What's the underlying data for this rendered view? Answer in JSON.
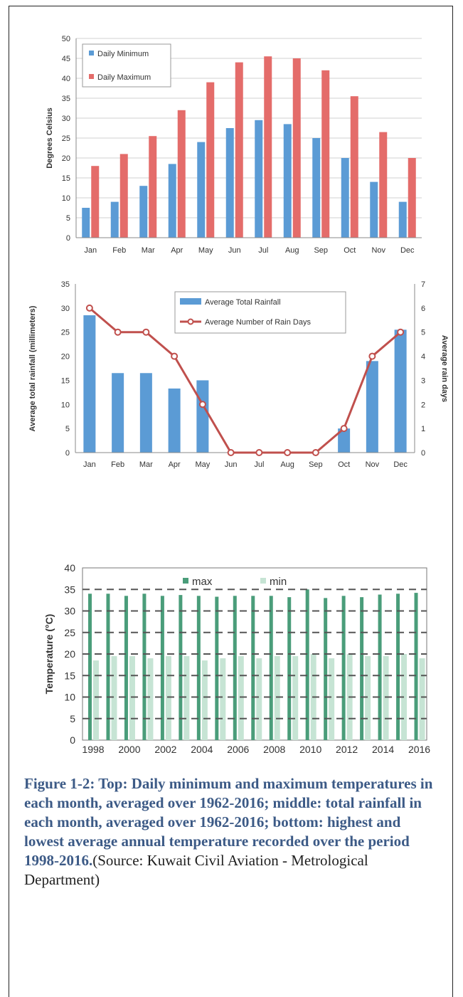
{
  "colors": {
    "daily_min": "#5b9bd5",
    "daily_max": "#e46c6a",
    "rainfall_bar": "#5b9bd5",
    "rain_days_line": "#c0504d",
    "annual_max": "#4a9d7a",
    "annual_min": "#c6e4d4",
    "caption_bold": "#3c5a86"
  },
  "charts": {
    "top": {
      "y_ticks": [
        "0",
        "5",
        "10",
        "15",
        "20",
        "25",
        "30",
        "35",
        "40",
        "45",
        "50"
      ],
      "x_ticks": [
        "Jan",
        "Feb",
        "Mar",
        "Apr",
        "May",
        "Jun",
        "Jul",
        "Aug",
        "Sep",
        "Oct",
        "Nov",
        "Dec"
      ]
    },
    "middle": {
      "y_ticks": [
        "0",
        "5",
        "10",
        "15",
        "20",
        "25",
        "30",
        "35"
      ],
      "y2_ticks": [
        "0",
        "1",
        "2",
        "3",
        "4",
        "5",
        "6",
        "7"
      ],
      "x_ticks": [
        "Jan",
        "Feb",
        "Mar",
        "Apr",
        "May",
        "Jun",
        "Jul",
        "Aug",
        "Sep",
        "Oct",
        "Nov",
        "Dec"
      ]
    },
    "bottom": {
      "y_ticks": [
        "0",
        "5",
        "10",
        "15",
        "20",
        "25",
        "30",
        "35",
        "40"
      ],
      "x_ticks": [
        "1998",
        "2000",
        "2002",
        "2004",
        "2006",
        "2008",
        "2010",
        "2012",
        "2014",
        "2016"
      ]
    }
  },
  "caption": {
    "bold": "Figure 1-2: Top: Daily minimum and maximum temperatures in each month, averaged over 1962-2016; middle: total rainfall in each month, averaged over 1962-2016; bottom: highest and lowest average annual temperature recorded over the period 1998-2016.",
    "normal": "(Source: Kuwait Civil Aviation - Metrological Department)"
  },
  "chart_data": [
    {
      "type": "bar",
      "categories": [
        "Jan",
        "Feb",
        "Mar",
        "Apr",
        "May",
        "Jun",
        "Jul",
        "Aug",
        "Sep",
        "Oct",
        "Nov",
        "Dec"
      ],
      "series": [
        {
          "name": "Daily Minimum",
          "values": [
            7.5,
            9,
            13,
            18.5,
            24,
            27.5,
            29.5,
            28.5,
            25,
            20,
            14,
            9
          ]
        },
        {
          "name": "Daily Maximum",
          "values": [
            18,
            21,
            25.5,
            32,
            39,
            44,
            45.5,
            45,
            42,
            35.5,
            26.5,
            20
          ]
        }
      ],
      "ylabel": "Degrees Celsius",
      "ylim": [
        0,
        50
      ],
      "legend": "top-left",
      "grid": true
    },
    {
      "type": "bar",
      "categories": [
        "Jan",
        "Feb",
        "Mar",
        "Apr",
        "May",
        "Jun",
        "Jul",
        "Aug",
        "Sep",
        "Oct",
        "Nov",
        "Dec"
      ],
      "series": [
        {
          "name": "Average Total Rainfall",
          "type": "bar",
          "axis": "left",
          "values": [
            28.5,
            16.5,
            16.5,
            13.3,
            15,
            0,
            0,
            0,
            0,
            5,
            19,
            25.5
          ]
        },
        {
          "name": "Average Number of Rain Days",
          "type": "line",
          "axis": "right",
          "values": [
            6,
            5,
            5,
            4,
            2,
            0,
            0,
            0,
            0,
            1,
            4,
            5
          ]
        }
      ],
      "ylabel": "Average total rainfall (millimeters)",
      "y2label": "Average rain days",
      "ylim": [
        0,
        35
      ],
      "y2lim": [
        0,
        7
      ],
      "legend": "top-center",
      "grid": false
    },
    {
      "type": "bar",
      "categories": [
        "1998",
        "1999",
        "2000",
        "2001",
        "2002",
        "2003",
        "2004",
        "2005",
        "2006",
        "2007",
        "2008",
        "2009",
        "2010",
        "2011",
        "2012",
        "2013",
        "2014",
        "2015",
        "2016"
      ],
      "series": [
        {
          "name": "max",
          "values": [
            34,
            34,
            33.5,
            34,
            33.5,
            33.7,
            33.5,
            33.3,
            33.5,
            33.5,
            33.5,
            33.2,
            35,
            33,
            33.5,
            33.2,
            33.8,
            34,
            34.2
          ]
        },
        {
          "name": "min",
          "values": [
            18.5,
            19.5,
            19.5,
            19,
            19.5,
            19.5,
            18.5,
            19,
            19.5,
            19,
            19.5,
            19.5,
            20,
            19,
            20,
            19.5,
            19.5,
            20,
            19
          ]
        }
      ],
      "ylabel": "Temperature (°C)",
      "ylim": [
        0,
        40
      ],
      "legend": "top-center",
      "grid": true
    }
  ]
}
